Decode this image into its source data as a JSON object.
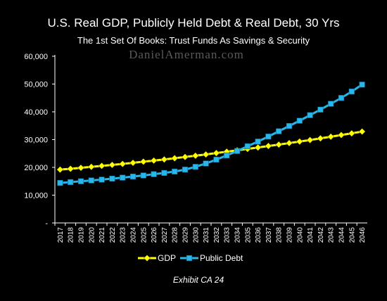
{
  "chart_data": {
    "type": "line",
    "title": "U.S. Real GDP, Publicly Held Debt & Real Debt, 30 Yrs",
    "subtitle": "The 1st Set Of Books: Trust Funds As Savings & Security",
    "watermark": "DanielAmerman.com",
    "footer": "Exhibit CA 24",
    "xlabel": "",
    "ylabel": "",
    "ylim": [
      0,
      60000
    ],
    "y_ticks": [
      {
        "value": 60000,
        "label": "60,000"
      },
      {
        "value": 50000,
        "label": "50,000"
      },
      {
        "value": 40000,
        "label": "40,000"
      },
      {
        "value": 30000,
        "label": "30,000"
      },
      {
        "value": 20000,
        "label": "20,000"
      },
      {
        "value": 10000,
        "label": "10,000"
      },
      {
        "value": 0,
        "label": "-"
      }
    ],
    "grid": false,
    "legend_position": "bottom",
    "x": [
      "2017",
      "2018",
      "2019",
      "2020",
      "2021",
      "2022",
      "2023",
      "2024",
      "2025",
      "2026",
      "2027",
      "2028",
      "2029",
      "2030",
      "2031",
      "2032",
      "2033",
      "2034",
      "2035",
      "2036",
      "2037",
      "2038",
      "2039",
      "2040",
      "2041",
      "2042",
      "2043",
      "2044",
      "2045",
      "2046"
    ],
    "series": [
      {
        "name": "GDP",
        "color": "#ffff00",
        "marker": "diamond",
        "values": [
          19200,
          19500,
          19850,
          20200,
          20550,
          20900,
          21250,
          21650,
          22050,
          22450,
          22850,
          23300,
          23750,
          24200,
          24650,
          25150,
          25650,
          26150,
          26650,
          27150,
          27700,
          28200,
          28750,
          29300,
          29850,
          30450,
          31050,
          31650,
          32250,
          32900
        ]
      },
      {
        "name": "Public Debt",
        "color": "#29b6e8",
        "marker": "square",
        "values": [
          14400,
          14700,
          15000,
          15300,
          15600,
          15950,
          16300,
          16700,
          17100,
          17550,
          18000,
          18500,
          19200,
          20200,
          21400,
          22800,
          24300,
          25900,
          27600,
          29300,
          31100,
          33000,
          34900,
          36800,
          38800,
          40800,
          42900,
          45000,
          47300,
          49800
        ]
      }
    ]
  }
}
